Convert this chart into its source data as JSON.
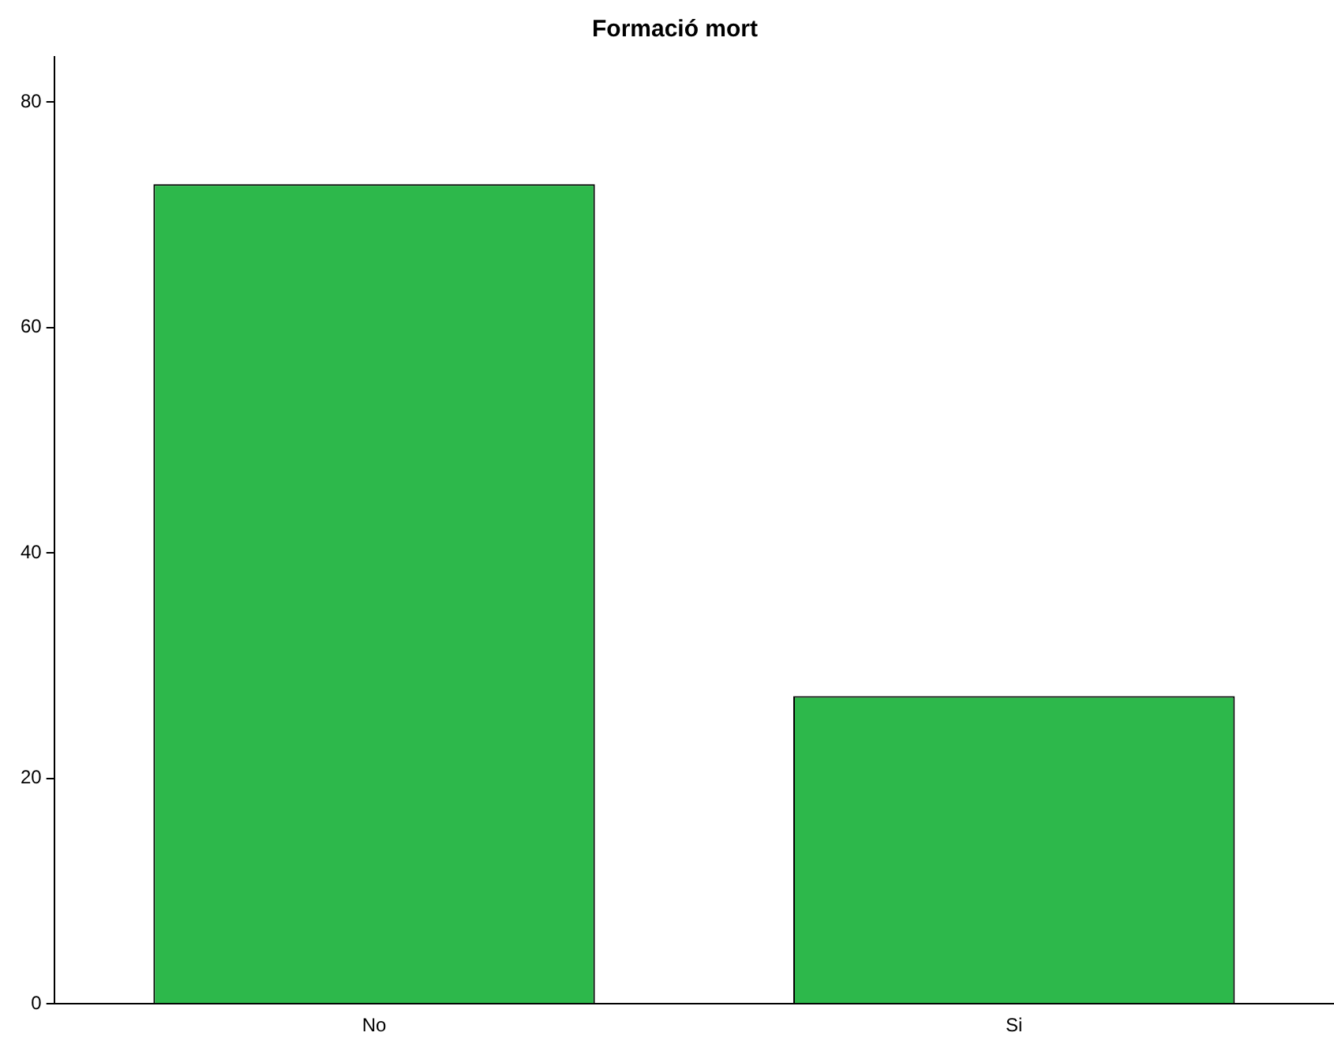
{
  "chart_data": {
    "type": "bar",
    "title": "Formació mort",
    "categories": [
      "No",
      "Si"
    ],
    "values": [
      72.7,
      27.3
    ],
    "color": "#2db84b",
    "ylim": [
      0,
      84
    ],
    "yticks": [
      0,
      20,
      40,
      60,
      80
    ],
    "grid": false,
    "legend": false
  }
}
